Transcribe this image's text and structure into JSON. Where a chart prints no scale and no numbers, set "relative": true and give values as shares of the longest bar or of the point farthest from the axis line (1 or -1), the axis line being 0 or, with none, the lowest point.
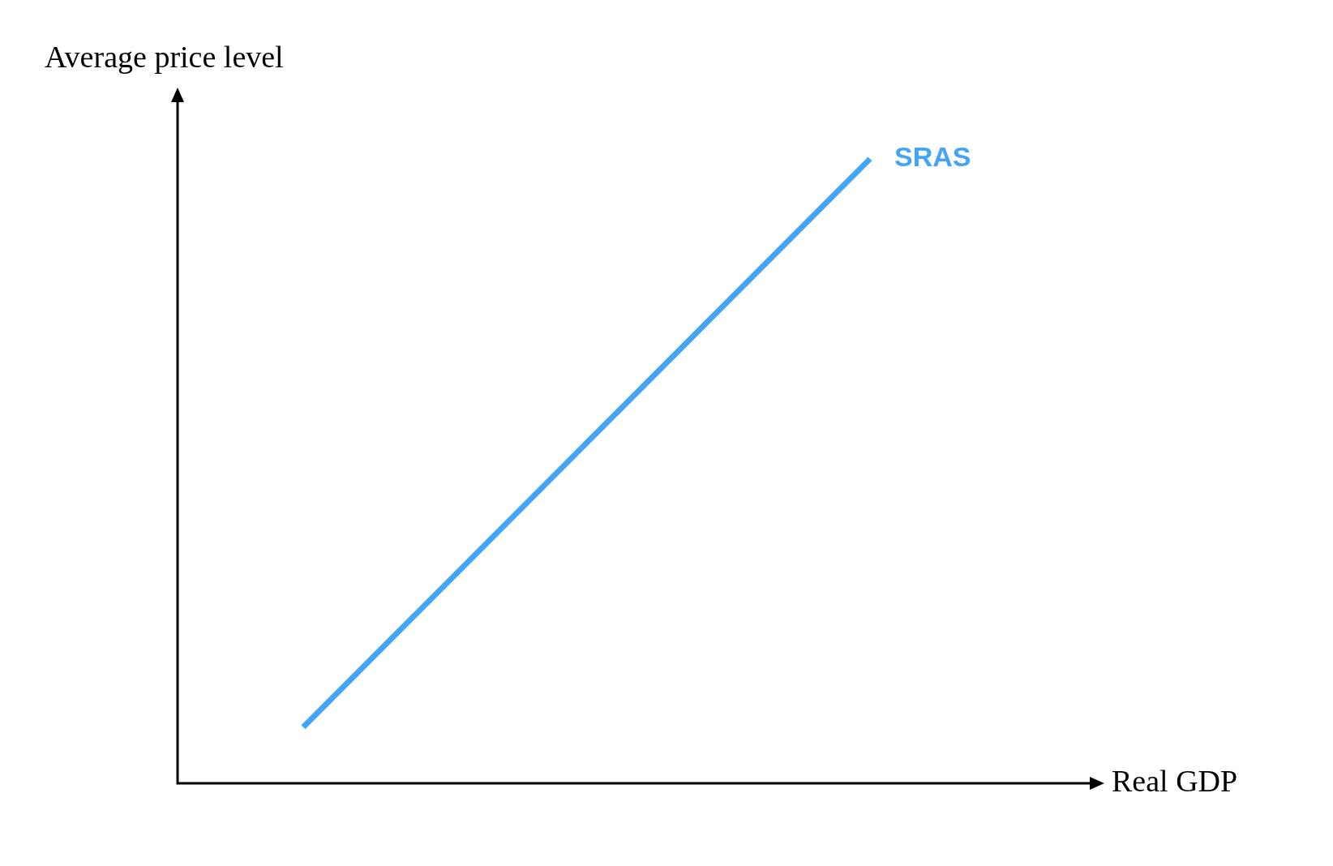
{
  "chart_data": {
    "type": "line",
    "xlabel": "Real GDP",
    "ylabel": "Average price level",
    "relative": true,
    "marker": "none",
    "line_style": "solid",
    "categories": [
      null,
      null
    ],
    "series": [
      {
        "name": "SRAS",
        "color": "#42a5f5",
        "values": [
          0.09,
          1
        ]
      }
    ]
  }
}
